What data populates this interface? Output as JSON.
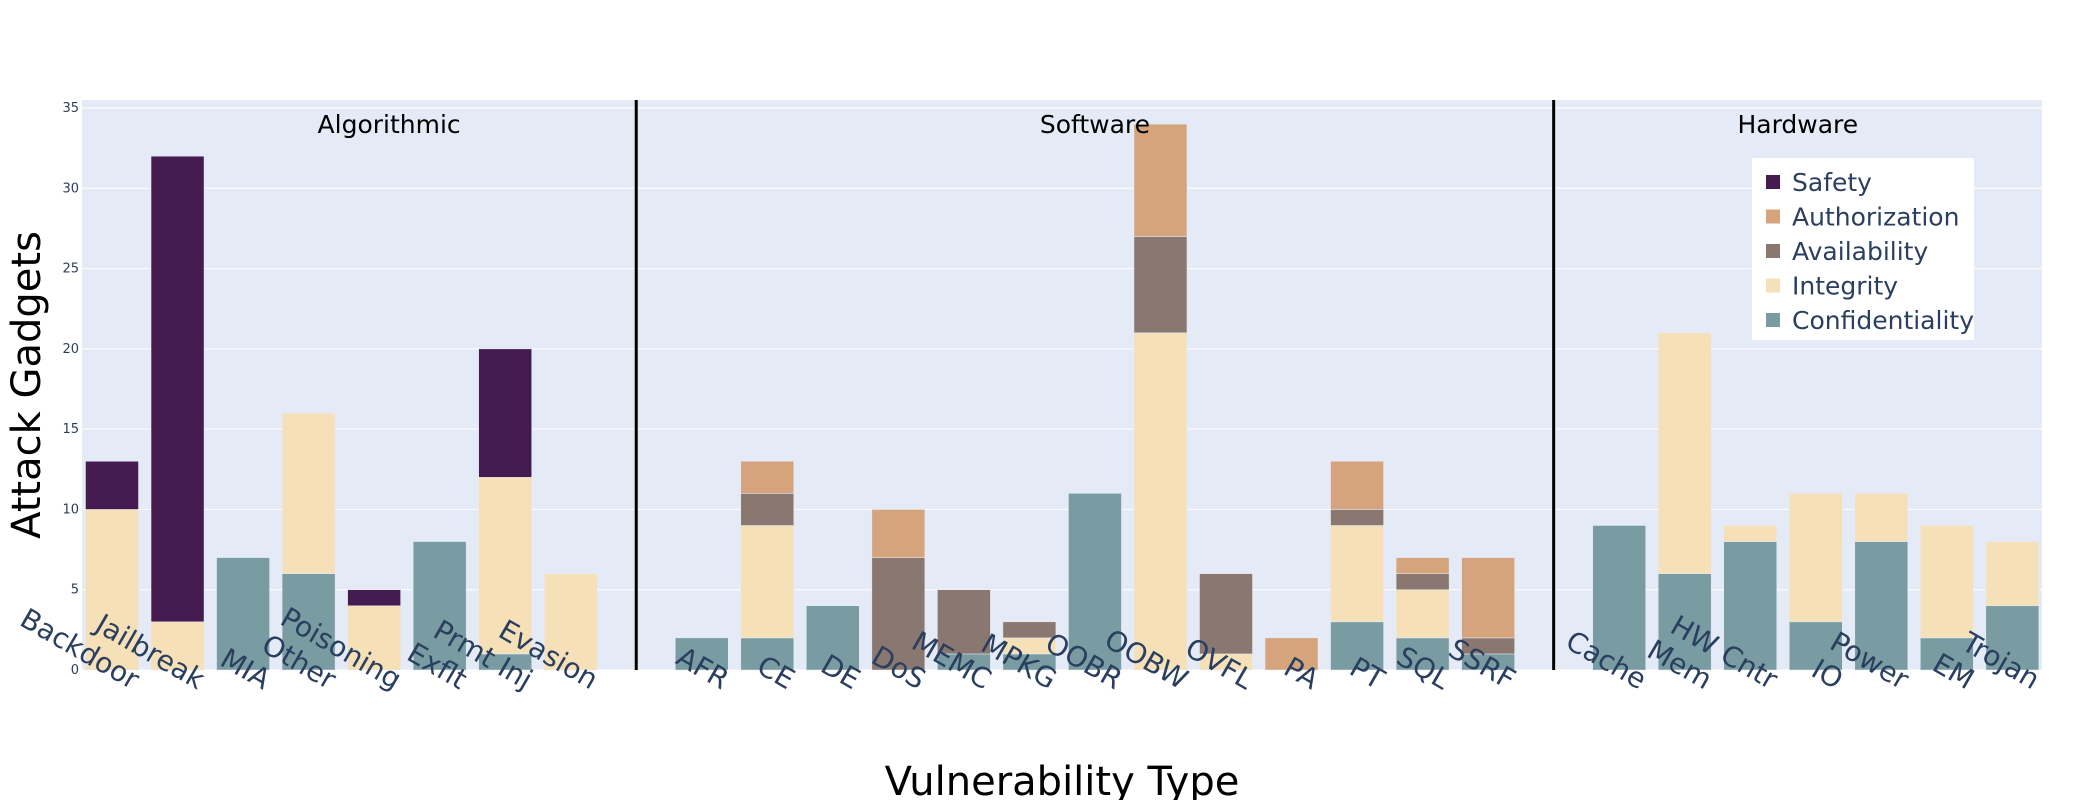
{
  "chart_data": {
    "type": "bar",
    "stacked": true,
    "xlabel": "Vulnerability Type",
    "ylabel": "Attack Gadgets",
    "ylim": [
      0,
      35.5
    ],
    "yticks": [
      0,
      5,
      10,
      15,
      20,
      25,
      30,
      35
    ],
    "grid": true,
    "legend_position": "top-right",
    "groups": [
      {
        "name": "Algorithmic",
        "categories": [
          "Backdoor",
          "Jailbreak",
          "MIA",
          "Other",
          "Poisoning",
          "Exflt",
          "Prmt Inj",
          "Evasion"
        ]
      },
      {
        "name": "Software",
        "categories": [
          "AFR",
          "CE",
          "DE",
          "DoS",
          "MEMC",
          "MPKG",
          "OOBR",
          "OOBW",
          "OVFL",
          "PA",
          "PT",
          "SQL",
          "SSRF"
        ]
      },
      {
        "name": "Hardware",
        "categories": [
          "Cache",
          "Mem",
          "HW Cntr",
          "IO",
          "Power",
          "EM",
          "Trojan"
        ]
      }
    ],
    "categories": [
      "Backdoor",
      "Jailbreak",
      "MIA",
      "Other",
      "Poisoning",
      "Exflt",
      "Prmt Inj",
      "Evasion",
      "AFR",
      "CE",
      "DE",
      "DoS",
      "MEMC",
      "MPKG",
      "OOBR",
      "OOBW",
      "OVFL",
      "PA",
      "PT",
      "SQL",
      "SSRF",
      "Cache",
      "Mem",
      "HW Cntr",
      "IO",
      "Power",
      "EM",
      "Trojan"
    ],
    "series": [
      {
        "name": "Confidentiality",
        "color": "#789ca1",
        "values": [
          0,
          0,
          7,
          6,
          0,
          8,
          1,
          0,
          2,
          2,
          4,
          0,
          1,
          1,
          11,
          0,
          0,
          0,
          3,
          2,
          1,
          9,
          6,
          8,
          3,
          8,
          2,
          4
        ]
      },
      {
        "name": "Integrity",
        "color": "#f5e0b8",
        "values": [
          10,
          3,
          0,
          10,
          4,
          0,
          11,
          6,
          0,
          7,
          0,
          0,
          0,
          1,
          0,
          21,
          1,
          0,
          6,
          3,
          0,
          0,
          15,
          1,
          8,
          3,
          7,
          4
        ]
      },
      {
        "name": "Availability",
        "color": "#8a7870",
        "values": [
          0,
          0,
          0,
          0,
          0,
          0,
          0,
          0,
          0,
          2,
          0,
          7,
          4,
          1,
          0,
          6,
          5,
          0,
          1,
          1,
          1,
          0,
          0,
          0,
          0,
          0,
          0,
          0
        ]
      },
      {
        "name": "Authorization",
        "color": "#d5a47c",
        "values": [
          0,
          0,
          0,
          0,
          0,
          0,
          0,
          0,
          0,
          2,
          0,
          3,
          0,
          0,
          0,
          7,
          0,
          2,
          3,
          1,
          5,
          0,
          0,
          0,
          0,
          0,
          0,
          0
        ]
      },
      {
        "name": "Safety",
        "color": "#451b50",
        "values": [
          3,
          29,
          0,
          0,
          1,
          0,
          8,
          0,
          0,
          0,
          0,
          0,
          0,
          0,
          0,
          0,
          0,
          0,
          0,
          0,
          0,
          0,
          0,
          0,
          0,
          0,
          0,
          0
        ]
      }
    ],
    "legend_order": [
      "Safety",
      "Authorization",
      "Availability",
      "Integrity",
      "Confidentiality"
    ],
    "plot_background": "#e5ebf6",
    "divider_color": "#000000"
  }
}
